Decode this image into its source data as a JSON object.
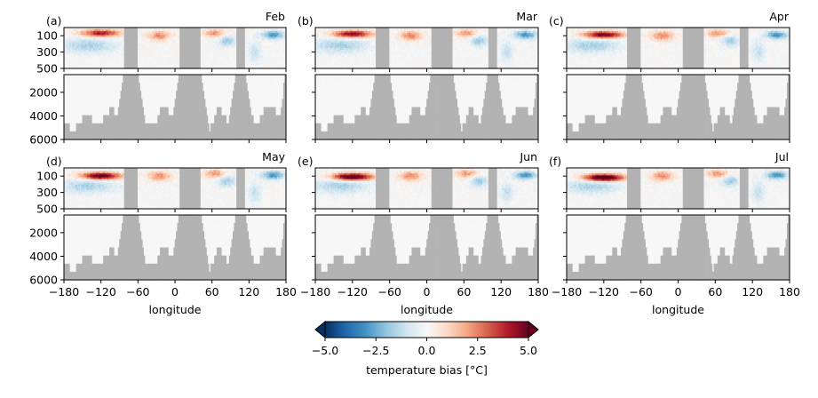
{
  "chart_data": {
    "type": "heatmap",
    "xlabel": "longitude",
    "x_ticks": [
      -180,
      -120,
      -60,
      0,
      60,
      120,
      180
    ],
    "x_tick_labels": [
      "−180",
      "−120",
      "−60",
      "0",
      "60",
      "120",
      "180"
    ],
    "xlim": [
      -180,
      180
    ],
    "upper_depth_ticks": [
      "100",
      "300",
      "500"
    ],
    "upper_depth_values": [
      100,
      300,
      500
    ],
    "upper_ylim": [
      0,
      500
    ],
    "lower_depth_ticks": [
      "2000",
      "4000",
      "6000"
    ],
    "lower_depth_values": [
      2000,
      4000,
      6000
    ],
    "lower_ylim": [
      500,
      6000
    ],
    "land_color": "#b3b3b3",
    "land_longitudes": [
      [
        -81,
        -60
      ],
      [
        8,
        42
      ],
      [
        100,
        114
      ]
    ],
    "panels": [
      {
        "label": "(a)",
        "month": "Feb"
      },
      {
        "label": "(b)",
        "month": "Mar"
      },
      {
        "label": "(c)",
        "month": "Apr"
      },
      {
        "label": "(d)",
        "month": "May"
      },
      {
        "label": "(e)",
        "month": "Jun"
      },
      {
        "label": "(f)",
        "month": "Jul"
      }
    ],
    "colorbar": {
      "label": "temperature bias [°C]",
      "colormap": "RdBu_r",
      "range": [
        -5,
        5
      ],
      "ticks": [
        -5,
        -2.5,
        0,
        2.5,
        5
      ],
      "tick_labels": [
        "−5.0",
        "−2.5",
        "0.0",
        "2.5",
        "5.0"
      ],
      "colors": [
        "#053061",
        "#2166ac",
        "#4393c3",
        "#92c5de",
        "#d1e5f0",
        "#f7f7f7",
        "#fddbc7",
        "#f4a582",
        "#d6604d",
        "#b2182b",
        "#67001f"
      ]
    }
  }
}
